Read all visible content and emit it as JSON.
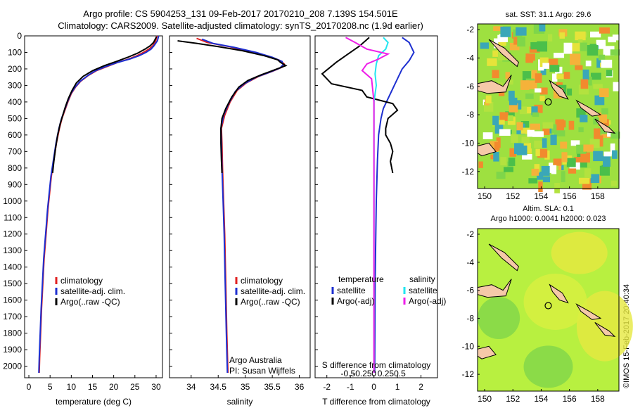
{
  "header": {
    "line1": "Argo profile: CS 5904253_131 09-Feb-2017 20170210_208 7.139S 154.501E",
    "line2": "Climatology: CARS2009. Satellite-adjusted climatology: synTS_20170208.nc (1.9d earlier)"
  },
  "credit": "©IMOS 15-Feb-2017 20:40:34",
  "colors": {
    "clim": "#e02020",
    "sat": "#1d2fd0",
    "argo": "#000000",
    "sal_sat": "#22e6f0",
    "sal_argo": "#ee1ee8"
  },
  "chart_data": [
    {
      "type": "line",
      "xlabel": "temperature (deg C)",
      "xlim": [
        -1,
        31.5
      ],
      "ylim": [
        2070,
        0
      ],
      "xticks": [
        0,
        5,
        10,
        15,
        20,
        25,
        30
      ],
      "yticks": [
        0,
        100,
        200,
        300,
        400,
        500,
        600,
        700,
        800,
        900,
        1000,
        1100,
        1200,
        1300,
        1400,
        1500,
        1600,
        1700,
        1800,
        1900,
        2000
      ],
      "legend": [
        "climatology",
        "satellite-adj. clim.",
        "Argo(..raw -QC)"
      ],
      "series": [
        {
          "name": "climatology",
          "color": "clim",
          "points": [
            [
              30.2,
              0
            ],
            [
              29.9,
              30
            ],
            [
              29.2,
              60
            ],
            [
              28.3,
              80
            ],
            [
              27,
              100
            ],
            [
              25.5,
              120
            ],
            [
              23.5,
              140
            ],
            [
              21,
              160
            ],
            [
              18.5,
              185
            ],
            [
              16,
              210
            ],
            [
              14,
              240
            ],
            [
              12.2,
              275
            ],
            [
              11,
              310
            ],
            [
              10,
              350
            ],
            [
              9.2,
              400
            ],
            [
              8.5,
              450
            ],
            [
              7.8,
              500
            ],
            [
              7.2,
              560
            ],
            [
              6.5,
              650
            ],
            [
              5.9,
              750
            ],
            [
              5.3,
              850
            ],
            [
              4.9,
              950
            ],
            [
              4.5,
              1050
            ],
            [
              4.2,
              1150
            ],
            [
              3.9,
              1250
            ],
            [
              3.6,
              1350
            ],
            [
              3.4,
              1450
            ],
            [
              3.2,
              1550
            ],
            [
              3.0,
              1650
            ],
            [
              2.85,
              1750
            ],
            [
              2.7,
              1850
            ],
            [
              2.55,
              1950
            ],
            [
              2.45,
              2040
            ]
          ]
        },
        {
          "name": "satellite-adj. clim.",
          "color": "sat",
          "points": [
            [
              30.6,
              0
            ],
            [
              30.3,
              30
            ],
            [
              29.5,
              60
            ],
            [
              28.8,
              80
            ],
            [
              27.6,
              100
            ],
            [
              26,
              120
            ],
            [
              23.8,
              140
            ],
            [
              21,
              160
            ],
            [
              18.2,
              185
            ],
            [
              15.8,
              210
            ],
            [
              13.9,
              240
            ],
            [
              12.1,
              275
            ],
            [
              10.9,
              310
            ],
            [
              9.9,
              350
            ],
            [
              9.1,
              400
            ],
            [
              8.4,
              450
            ],
            [
              7.7,
              500
            ],
            [
              7.1,
              560
            ],
            [
              6.4,
              650
            ],
            [
              5.8,
              750
            ],
            [
              5.2,
              850
            ],
            [
              4.8,
              950
            ],
            [
              4.4,
              1050
            ],
            [
              4.1,
              1150
            ],
            [
              3.8,
              1250
            ],
            [
              3.5,
              1350
            ],
            [
              3.3,
              1450
            ],
            [
              3.1,
              1550
            ],
            [
              2.9,
              1650
            ],
            [
              2.75,
              1750
            ],
            [
              2.6,
              1850
            ],
            [
              2.45,
              1950
            ],
            [
              2.35,
              2040
            ]
          ]
        },
        {
          "name": "Argo(..raw -QC)",
          "color": "argo",
          "points": [
            [
              30.1,
              5
            ],
            [
              29.8,
              20
            ],
            [
              29.4,
              40
            ],
            [
              28.6,
              60
            ],
            [
              27.4,
              80
            ],
            [
              25.6,
              105
            ],
            [
              23.3,
              130
            ],
            [
              20.6,
              155
            ],
            [
              17.8,
              180
            ],
            [
              15.1,
              210
            ],
            [
              12.8,
              245
            ],
            [
              11.2,
              285
            ],
            [
              10.2,
              330
            ],
            [
              9.3,
              380
            ],
            [
              8.6,
              430
            ],
            [
              8,
              480
            ],
            [
              7.4,
              530
            ],
            [
              6.8,
              600
            ],
            [
              6.3,
              680
            ],
            [
              5.9,
              760
            ],
            [
              5.6,
              830
            ]
          ]
        }
      ]
    },
    {
      "type": "line",
      "xlabel": "salinity",
      "xlim": [
        33.6,
        36.2
      ],
      "ylim": [
        2070,
        0
      ],
      "xticks": [
        34,
        34.5,
        35,
        35.5,
        36
      ],
      "legend": [
        "climatology",
        "satellite-adj. clim.",
        "Argo(..raw -QC)"
      ],
      "annotation": [
        "Argo Australia",
        "PI: Susan Wijffels"
      ],
      "series": [
        {
          "name": "climatology",
          "color": "clim",
          "points": [
            [
              34.1,
              15
            ],
            [
              34.3,
              40
            ],
            [
              34.7,
              65
            ],
            [
              35.1,
              95
            ],
            [
              35.45,
              125
            ],
            [
              35.65,
              150
            ],
            [
              35.72,
              170
            ],
            [
              35.68,
              190
            ],
            [
              35.5,
              215
            ],
            [
              35.25,
              245
            ],
            [
              35.02,
              285
            ],
            [
              34.85,
              330
            ],
            [
              34.72,
              400
            ],
            [
              34.62,
              480
            ],
            [
              34.56,
              560
            ],
            [
              34.57,
              650
            ],
            [
              34.58,
              800
            ],
            [
              34.6,
              1000
            ],
            [
              34.62,
              1200
            ],
            [
              34.64,
              1500
            ],
            [
              34.66,
              1800
            ],
            [
              34.68,
              2040
            ]
          ]
        },
        {
          "name": "satellite-adj. clim.",
          "color": "sat",
          "points": [
            [
              34.2,
              20
            ],
            [
              34.4,
              45
            ],
            [
              34.8,
              70
            ],
            [
              35.2,
              100
            ],
            [
              35.5,
              130
            ],
            [
              35.68,
              155
            ],
            [
              35.7,
              175
            ],
            [
              35.64,
              195
            ],
            [
              35.45,
              220
            ],
            [
              35.2,
              250
            ],
            [
              34.98,
              290
            ],
            [
              34.82,
              335
            ],
            [
              34.7,
              405
            ],
            [
              34.6,
              480
            ],
            [
              34.55,
              560
            ],
            [
              34.56,
              650
            ],
            [
              34.57,
              800
            ],
            [
              34.59,
              1000
            ],
            [
              34.61,
              1200
            ],
            [
              34.63,
              1500
            ],
            [
              34.65,
              1800
            ],
            [
              34.67,
              2040
            ]
          ]
        },
        {
          "name": "Argo(..raw -QC)",
          "color": "argo",
          "points": [
            [
              33.75,
              30
            ],
            [
              34.1,
              45
            ],
            [
              34.5,
              65
            ],
            [
              34.95,
              90
            ],
            [
              35.35,
              120
            ],
            [
              35.6,
              145
            ],
            [
              35.65,
              160
            ],
            [
              35.75,
              180
            ],
            [
              35.55,
              205
            ],
            [
              35.3,
              235
            ],
            [
              35.05,
              270
            ],
            [
              34.88,
              310
            ],
            [
              34.75,
              370
            ],
            [
              34.64,
              440
            ],
            [
              34.57,
              500
            ],
            [
              34.55,
              560
            ],
            [
              34.55,
              650
            ],
            [
              34.56,
              750
            ],
            [
              34.57,
              830
            ]
          ]
        }
      ]
    },
    {
      "type": "line",
      "xlabel": "T difference from climatology",
      "xlabel_top": "S difference from climatology",
      "xlim": [
        -2.5,
        2.7
      ],
      "ylim": [
        2070,
        0
      ],
      "xticks": [
        -2,
        -1,
        0,
        1,
        2
      ],
      "xticks_top": [
        "-0.5",
        "-0.25",
        "0",
        "0.25",
        "0.5"
      ],
      "legend_headers": [
        "temperature",
        "salinity"
      ],
      "legend": [
        "satellite",
        "Argo(-adj)",
        "satellite",
        "Argo(-adj)"
      ],
      "series": [
        {
          "name": "satellite",
          "color": "sat",
          "points": [
            [
              1.2,
              10
            ],
            [
              1.5,
              40
            ],
            [
              1.7,
              100
            ],
            [
              1.5,
              150
            ],
            [
              1.2,
              200
            ],
            [
              1.0,
              260
            ],
            [
              0.8,
              320
            ],
            [
              0.6,
              380
            ],
            [
              0.4,
              440
            ],
            [
              0.3,
              500
            ],
            [
              0.2,
              600
            ],
            [
              0.15,
              750
            ],
            [
              0.1,
              1000
            ],
            [
              0.05,
              1500
            ],
            [
              0.03,
              2040
            ]
          ]
        },
        {
          "name": "Argo(-adj)",
          "color": "argo",
          "points": [
            [
              -0.2,
              10
            ],
            [
              -0.6,
              60
            ],
            [
              -1.1,
              110
            ],
            [
              -1.6,
              160
            ],
            [
              -2.2,
              230
            ],
            [
              -1.8,
              290
            ],
            [
              -0.5,
              330
            ],
            [
              -0.3,
              370
            ],
            [
              0.8,
              410
            ],
            [
              1.0,
              450
            ],
            [
              0.6,
              500
            ],
            [
              0.5,
              560
            ],
            [
              0.5,
              600
            ],
            [
              0.7,
              650
            ],
            [
              0.8,
              700
            ],
            [
              0.7,
              760
            ],
            [
              0.8,
              830
            ]
          ]
        },
        {
          "name": "satellite",
          "color": "sal_sat",
          "points": [
            [
              0.4,
              10
            ],
            [
              0.6,
              40
            ],
            [
              0.5,
              80
            ],
            [
              0.2,
              120
            ],
            [
              0.1,
              170
            ],
            [
              0.05,
              230
            ],
            [
              0.1,
              300
            ],
            [
              0.0,
              400
            ],
            [
              0.0,
              600
            ],
            [
              0.0,
              1000
            ],
            [
              0.0,
              2040
            ]
          ]
        },
        {
          "name": "Argo(-adj)",
          "color": "sal_argo",
          "points": [
            [
              -1.2,
              10
            ],
            [
              -0.8,
              40
            ],
            [
              -0.3,
              80
            ],
            [
              0.6,
              110
            ],
            [
              0.2,
              140
            ],
            [
              -0.3,
              170
            ],
            [
              -0.5,
              210
            ],
            [
              -0.1,
              260
            ],
            [
              0.0,
              400
            ],
            [
              0.0,
              600
            ],
            [
              0.0,
              1000
            ],
            [
              0.0,
              1500
            ],
            [
              0.0,
              2040
            ]
          ]
        }
      ]
    },
    {
      "type": "heatmap",
      "title": "sat. SST: 31.1  Argo: 29.6",
      "xlim": [
        149.5,
        159.5
      ],
      "ylim": [
        -13.2,
        -1.6
      ],
      "xticks": [
        150,
        152,
        154,
        156,
        158
      ],
      "yticks": [
        -2,
        -4,
        -6,
        -8,
        -10,
        -12
      ],
      "marker": [
        154.5,
        -7.1
      ]
    },
    {
      "type": "heatmap",
      "title": "Altim. SLA: 0.1",
      "subtitle": "Argo h1000: 0.0041  h2000: 0.023",
      "xlim": [
        149.5,
        159.5
      ],
      "ylim": [
        -13.2,
        -1.6
      ],
      "xticks": [
        150,
        152,
        154,
        156,
        158
      ],
      "yticks": [
        -2,
        -4,
        -6,
        -8,
        -10,
        -12
      ],
      "marker": [
        154.5,
        -7.1
      ]
    }
  ]
}
